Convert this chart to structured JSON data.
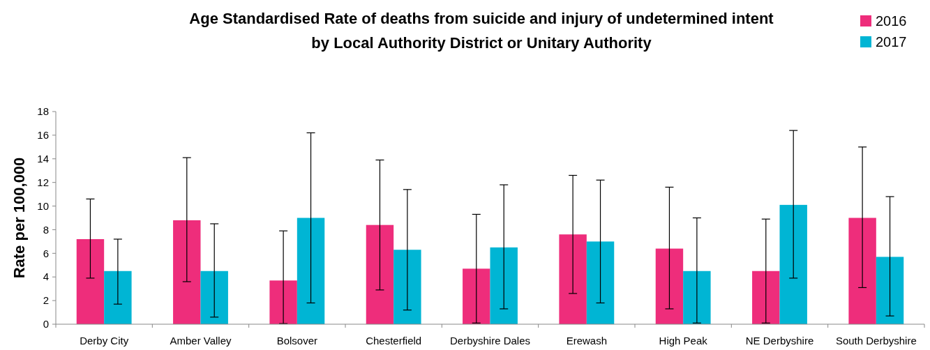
{
  "chart_data": {
    "type": "bar",
    "title": "Age Standardised Rate of deaths from suicide and injury of undetermined intent\nby  Local Authority District or Unitary Authority",
    "ylabel": "Rate per 100,000",
    "categories": [
      "Derby City",
      "Amber Valley",
      "Bolsover",
      "Chesterfield",
      "Derbyshire Dales",
      "Erewash",
      "High Peak",
      "NE Derbyshire",
      "South Derbyshire"
    ],
    "series": [
      {
        "name": "2016",
        "color": "#ee2d7b",
        "values": [
          7.2,
          8.8,
          3.7,
          8.4,
          4.7,
          7.6,
          6.4,
          4.5,
          9.0
        ],
        "errors": [
          [
            3.9,
            10.6
          ],
          [
            3.6,
            14.1
          ],
          [
            0.05,
            7.9
          ],
          [
            2.9,
            13.9
          ],
          [
            0.1,
            9.3
          ],
          [
            2.6,
            12.6
          ],
          [
            1.3,
            11.6
          ],
          [
            0.1,
            8.9
          ],
          [
            3.1,
            15.0
          ]
        ]
      },
      {
        "name": "2017",
        "color": "#00b5d4",
        "values": [
          4.5,
          4.5,
          9.0,
          6.3,
          6.5,
          7.0,
          4.5,
          10.1,
          5.7
        ],
        "errors": [
          [
            1.7,
            7.2
          ],
          [
            0.6,
            8.5
          ],
          [
            1.8,
            16.2
          ],
          [
            1.2,
            11.4
          ],
          [
            1.3,
            11.8
          ],
          [
            1.8,
            12.2
          ],
          [
            0.1,
            9.0
          ],
          [
            3.9,
            16.4
          ],
          [
            0.7,
            10.8
          ]
        ]
      }
    ],
    "ylim": [
      0,
      18
    ],
    "yticks": [
      0,
      2,
      4,
      6,
      8,
      10,
      12,
      14,
      16,
      18
    ],
    "grid": false,
    "legend": "top right"
  }
}
